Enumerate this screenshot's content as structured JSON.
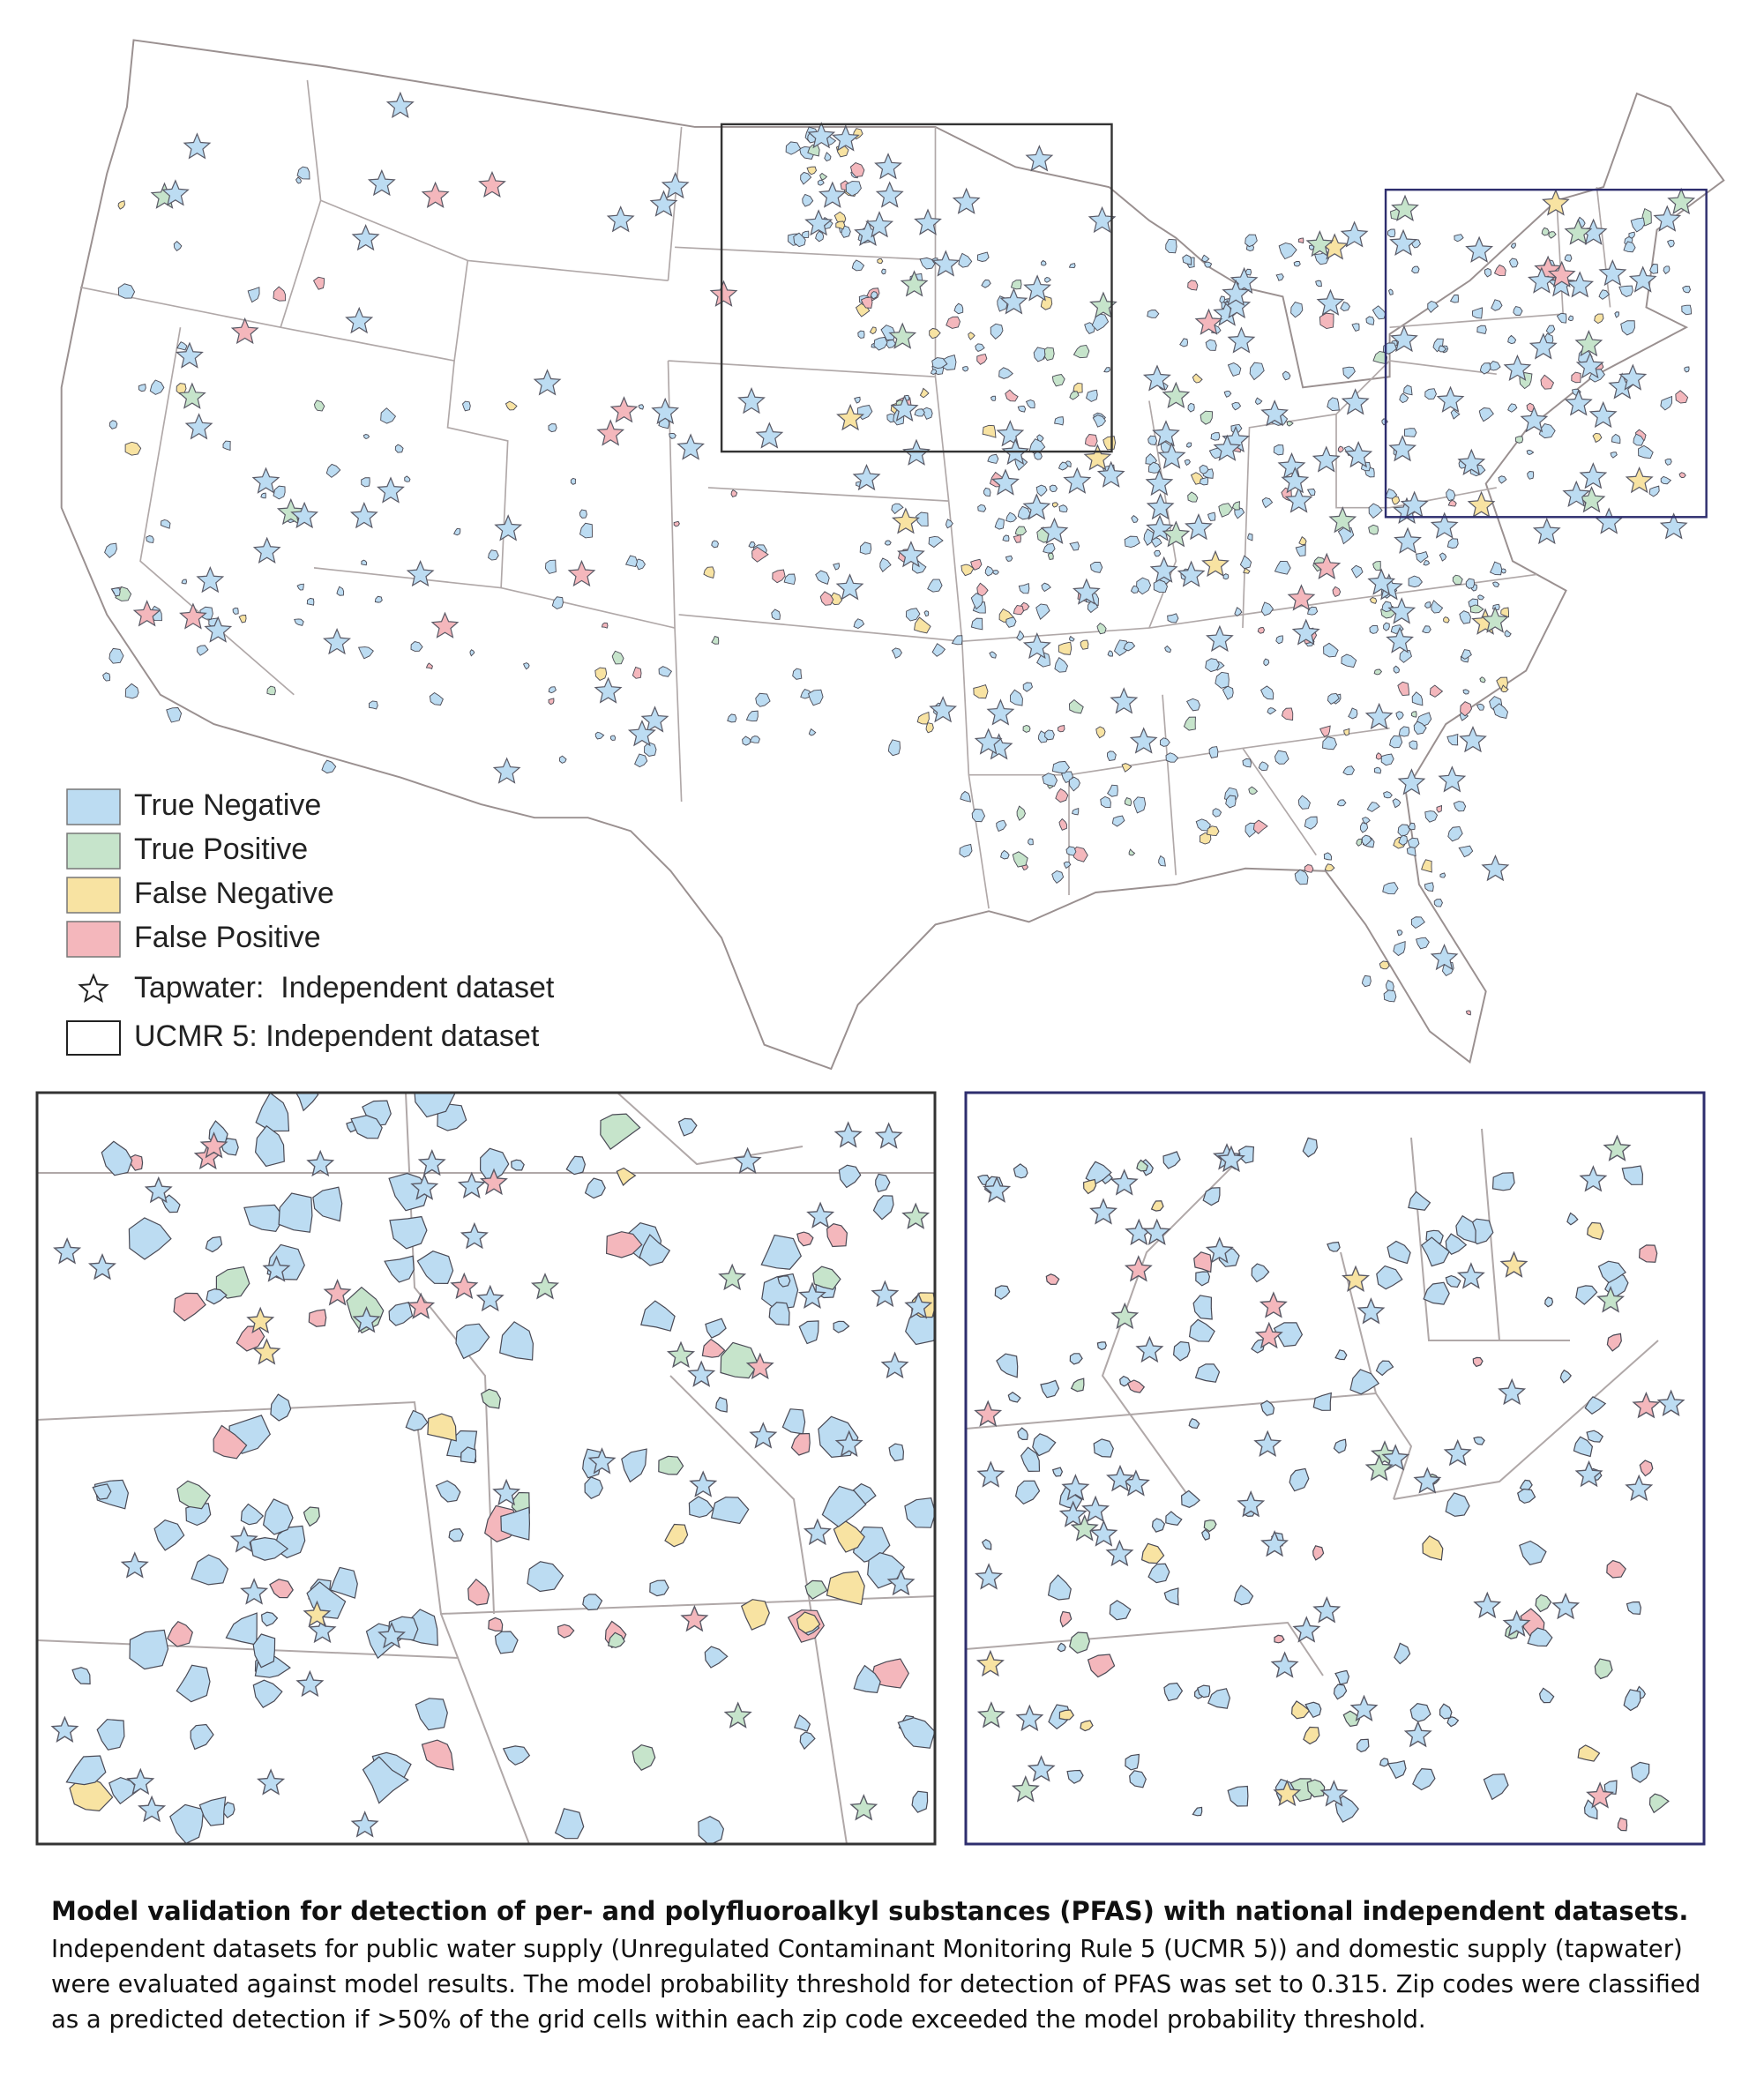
{
  "legend": {
    "classes": [
      {
        "label": "True Negative",
        "color": "#bcdcf2"
      },
      {
        "label": "True Positive",
        "color": "#c6e4cb"
      },
      {
        "label": "False Negative",
        "color": "#f8e3a2"
      },
      {
        "label": "False Positive",
        "color": "#f4b7bc"
      }
    ],
    "symbols": [
      "Tapwater:  Independent dataset",
      "UCMR 5: Independent dataset"
    ]
  },
  "caption": {
    "title": "Model validation for detection of per- and polyfluoroalkyl substances (PFAS) with national independent datasets.",
    "body": "Independent datasets for public water supply (Unregulated Contaminant Monitoring Rule 5 (UCMR 5)) and domestic supply (tapwater) were evaluated against model results. The model probability threshold for detection of PFAS was set to 0.315. Zip codes were classified as a predicted detection if >50% of the grid cells within each zip code exceeded the model probability threshold."
  }
}
